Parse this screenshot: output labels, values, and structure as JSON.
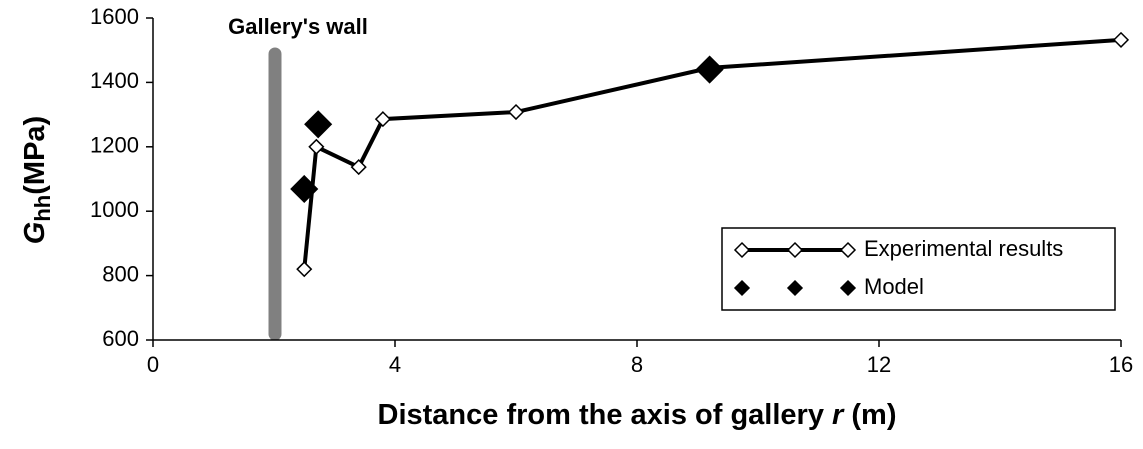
{
  "chart_data": {
    "type": "line",
    "annotation": "Gallery's wall",
    "x_label": {
      "text": "Distance from the axis of gallery",
      "symbol": "r",
      "unit": "(m)"
    },
    "y_label": {
      "symbol": "G",
      "subscript": "hh",
      "unit": "(MPa)"
    },
    "xlim": [
      0,
      16
    ],
    "xticks": [
      0,
      4,
      8,
      12,
      16
    ],
    "ylim": [
      600,
      1600
    ],
    "yticks": [
      600,
      800,
      1000,
      1200,
      1400,
      1600
    ],
    "legend": "lower right",
    "series": [
      {
        "name": "Experimental results",
        "color": "#000000",
        "marker": "open-diamond",
        "line": true,
        "x": [
          2.5,
          2.7,
          3.4,
          3.8,
          6.0,
          9.2,
          16.0
        ],
        "values": [
          820,
          1200,
          1137,
          1286,
          1308,
          1445,
          1532
        ]
      },
      {
        "name": "Model",
        "color": "#000000",
        "marker": "filled-diamond",
        "line": false,
        "x": [
          2.5,
          2.73,
          9.2
        ],
        "values": [
          1069,
          1270,
          1440
        ]
      }
    ]
  }
}
